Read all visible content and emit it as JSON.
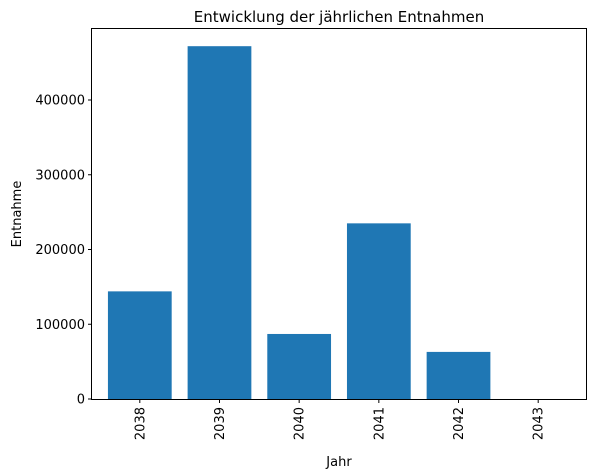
{
  "chart_data": {
    "type": "bar",
    "title": "Entwicklung der jährlichen Entnahmen",
    "xlabel": "Jahr",
    "ylabel": "Entnahme",
    "categories": [
      "2038",
      "2039",
      "2040",
      "2041",
      "2042",
      "2043"
    ],
    "values": [
      144000,
      472000,
      87000,
      235000,
      63000,
      0
    ],
    "ylim": [
      0,
      495000
    ],
    "yticks": [
      0,
      100000,
      200000,
      300000,
      400000
    ],
    "ytick_labels": [
      "0",
      "100000",
      "200000",
      "300000",
      "400000"
    ],
    "xtick_rotation": "vertical",
    "grid": false,
    "legend": "none",
    "bar_color": "#1f77b4"
  }
}
